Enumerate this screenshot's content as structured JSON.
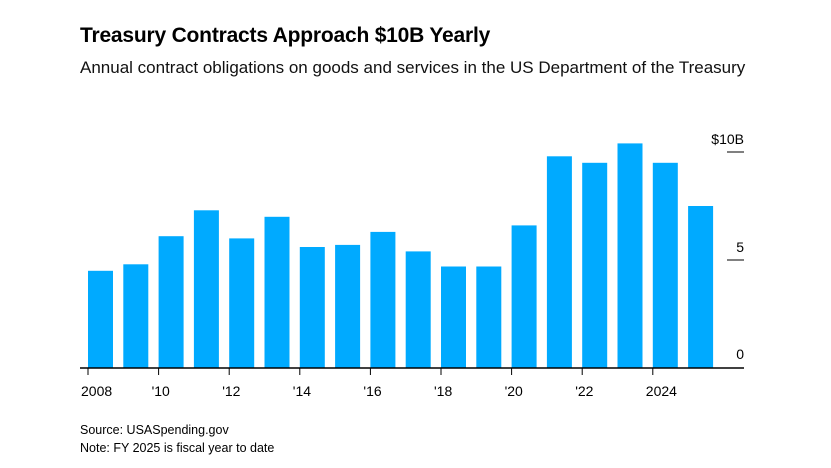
{
  "title": "Treasury Contracts Approach $10B Yearly",
  "subtitle": "Annual contract obligations on goods and services in the US Department of the Treasury",
  "source": "Source: USASpending.gov",
  "note": "Note: FY 2025 is fiscal year to date",
  "colors": {
    "bar": "#00aaff",
    "axis": "#000000"
  },
  "chart_data": {
    "type": "bar",
    "title": "Treasury Contracts Approach $10B Yearly",
    "subtitle": "Annual contract obligations on goods and services in the US Department of the Treasury",
    "xlabel": "",
    "ylabel": "",
    "categories": [
      "2008",
      "2009",
      "2010",
      "2011",
      "2012",
      "2013",
      "2014",
      "2015",
      "2016",
      "2017",
      "2018",
      "2019",
      "2020",
      "2021",
      "2022",
      "2023",
      "2024",
      "2025"
    ],
    "values": [
      4.5,
      4.8,
      6.1,
      7.3,
      6.0,
      7.0,
      5.6,
      5.7,
      6.3,
      5.4,
      4.7,
      4.7,
      6.6,
      9.8,
      9.5,
      10.4,
      9.5,
      7.5
    ],
    "ylim": [
      0,
      10
    ],
    "y_ticks": [
      {
        "value": 0,
        "label": "0"
      },
      {
        "value": 5,
        "label": "5"
      },
      {
        "value": 10,
        "label": "$10B"
      }
    ],
    "x_ticks": [
      {
        "index": 0,
        "label": "2008"
      },
      {
        "index": 2,
        "label": "'10"
      },
      {
        "index": 4,
        "label": "'12"
      },
      {
        "index": 6,
        "label": "'14"
      },
      {
        "index": 8,
        "label": "'16"
      },
      {
        "index": 10,
        "label": "'18"
      },
      {
        "index": 12,
        "label": "'20"
      },
      {
        "index": 14,
        "label": "'22"
      },
      {
        "index": 16,
        "label": "2024"
      }
    ],
    "y_axis_position": "right",
    "grid": false
  }
}
